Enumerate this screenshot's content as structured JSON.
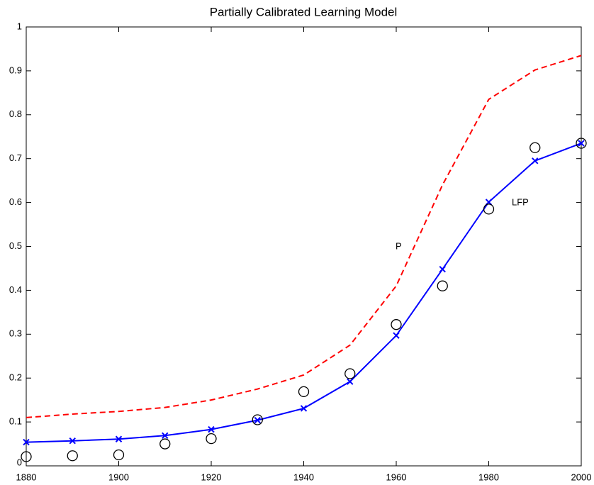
{
  "chart_data": {
    "type": "line",
    "title": "Partially Calibrated Learning Model",
    "x": [
      1880,
      1890,
      1900,
      1910,
      1920,
      1930,
      1940,
      1950,
      1960,
      1970,
      1980,
      1990,
      2000
    ],
    "series": [
      {
        "color": "#ff0000",
        "linestyle": "dashed",
        "marker": "none",
        "values": [
          0.11,
          0.118,
          0.124,
          0.133,
          0.15,
          0.175,
          0.207,
          0.275,
          0.41,
          0.64,
          0.835,
          0.902,
          0.935
        ]
      },
      {
        "color": "#0000ff",
        "linestyle": "solid",
        "marker": "x",
        "values": [
          0.054,
          0.057,
          0.061,
          0.069,
          0.083,
          0.104,
          0.131,
          0.192,
          0.297,
          0.448,
          0.601,
          0.695,
          0.735
        ]
      },
      {
        "color": "#000000",
        "linestyle": "none",
        "marker": "o",
        "values": [
          0.021,
          0.023,
          0.025,
          0.05,
          0.062,
          0.105,
          0.169,
          0.21,
          0.322,
          0.41,
          0.585,
          0.725,
          0.735
        ]
      }
    ],
    "annotations": [
      "P",
      "LFP"
    ],
    "xlim": [
      1880,
      2000
    ],
    "xticks": [
      1880,
      1900,
      1920,
      1940,
      1960,
      1980,
      2000
    ],
    "ylim": [
      0,
      1
    ],
    "yticks": [
      0,
      0.1,
      0.2,
      0.3,
      0.4,
      0.5,
      0.6,
      0.7,
      0.8,
      0.9,
      1
    ],
    "grid": false
  }
}
